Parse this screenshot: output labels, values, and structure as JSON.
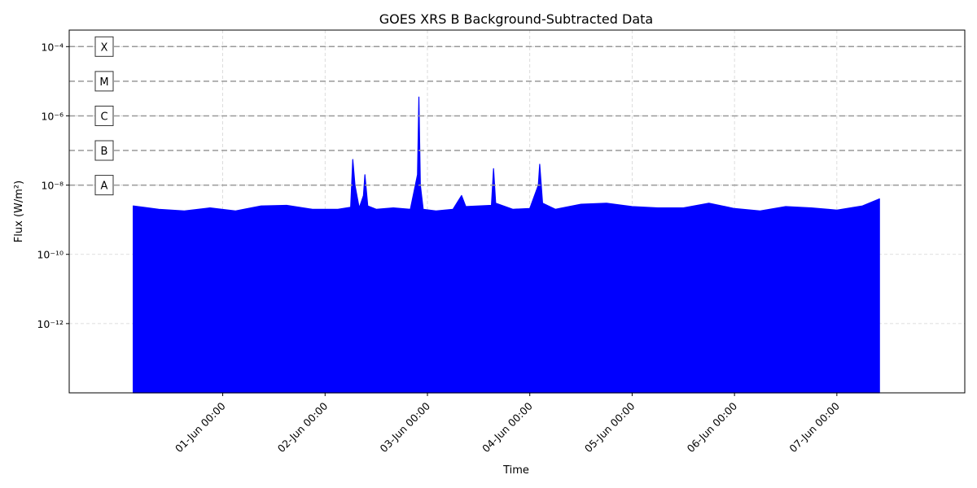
{
  "chart_data": {
    "type": "area",
    "title": "GOES XRS B Background-Subtracted Data",
    "xlabel": "Time",
    "ylabel": "Flux (W/m²)",
    "y_scale": "log",
    "ylim": [
      1e-14,
      0.0003
    ],
    "xlim": [
      "2024-05-30T12:00",
      "2024-06-08T06:00"
    ],
    "grid": true,
    "fill_color": "#0000ff",
    "y_ticks": [
      {
        "value": 1e-12,
        "label": "10⁻¹²"
      },
      {
        "value": 1e-10,
        "label": "10⁻¹⁰"
      },
      {
        "value": 1e-08,
        "label": "10⁻⁸"
      },
      {
        "value": 1e-06,
        "label": "10⁻⁶"
      },
      {
        "value": 0.0001,
        "label": "10⁻⁴"
      }
    ],
    "x_ticks": [
      {
        "value": "2024-06-01T00:00",
        "label": "01-Jun 00:00"
      },
      {
        "value": "2024-06-02T00:00",
        "label": "02-Jun 00:00"
      },
      {
        "value": "2024-06-03T00:00",
        "label": "03-Jun 00:00"
      },
      {
        "value": "2024-06-04T00:00",
        "label": "04-Jun 00:00"
      },
      {
        "value": "2024-06-05T00:00",
        "label": "05-Jun 00:00"
      },
      {
        "value": "2024-06-06T00:00",
        "label": "06-Jun 00:00"
      },
      {
        "value": "2024-06-07T00:00",
        "label": "07-Jun 00:00"
      }
    ],
    "flare_classes": [
      {
        "name": "X",
        "threshold": 0.0001
      },
      {
        "name": "M",
        "threshold": 1e-05
      },
      {
        "name": "C",
        "threshold": 1e-06
      },
      {
        "name": "B",
        "threshold": 1e-07
      },
      {
        "name": "A",
        "threshold": 1e-08
      }
    ],
    "series": [
      {
        "x": [
          "2024-05-31T03:00",
          "2024-05-31T09:00",
          "2024-05-31T15:00",
          "2024-05-31T21:00",
          "2024-06-01T03:00",
          "2024-06-01T09:00",
          "2024-06-01T15:00",
          "2024-06-01T21:00",
          "2024-06-02T03:00",
          "2024-06-02T06:00",
          "2024-06-02T06:30",
          "2024-06-02T07:00",
          "2024-06-02T08:00",
          "2024-06-02T09:00",
          "2024-06-02T09:20",
          "2024-06-02T10:00",
          "2024-06-02T12:00",
          "2024-06-02T16:00",
          "2024-06-02T20:00",
          "2024-06-02T21:40",
          "2024-06-02T22:00",
          "2024-06-02T22:20",
          "2024-06-02T23:00",
          "2024-06-03T02:00",
          "2024-06-03T06:00",
          "2024-06-03T08:00",
          "2024-06-03T09:00",
          "2024-06-03T12:00",
          "2024-06-03T15:00",
          "2024-06-03T15:30",
          "2024-06-03T16:00",
          "2024-06-03T20:00",
          "2024-06-04T00:00",
          "2024-06-04T02:00",
          "2024-06-04T02:20",
          "2024-06-04T03:00",
          "2024-06-04T06:00",
          "2024-06-04T12:00",
          "2024-06-04T18:00",
          "2024-06-05T00:00",
          "2024-06-05T06:00",
          "2024-06-05T12:00",
          "2024-06-05T18:00",
          "2024-06-06T00:00",
          "2024-06-06T06:00",
          "2024-06-06T12:00",
          "2024-06-06T18:00",
          "2024-06-07T00:00",
          "2024-06-07T06:00",
          "2024-06-07T10:00"
        ],
        "y": [
          2.5e-09,
          2e-09,
          1.8e-09,
          2.2e-09,
          1.8e-09,
          2.5e-09,
          2.6e-09,
          2e-09,
          2e-09,
          2.3e-09,
          5.5e-08,
          1e-08,
          2.2e-09,
          5e-09,
          2e-08,
          2.5e-09,
          2e-09,
          2.2e-09,
          2e-09,
          2e-08,
          3.5e-06,
          1e-08,
          2e-09,
          1.8e-09,
          2e-09,
          5e-09,
          2.4e-09,
          2.5e-09,
          2.6e-09,
          3e-08,
          3e-09,
          2e-09,
          2.1e-09,
          1e-08,
          4e-08,
          3e-09,
          2e-09,
          2.8e-09,
          3e-09,
          2.4e-09,
          2.2e-09,
          2.2e-09,
          3e-09,
          2.1e-09,
          1.8e-09,
          2.4e-09,
          2.2e-09,
          1.9e-09,
          2.5e-09,
          4e-09
        ]
      }
    ]
  }
}
